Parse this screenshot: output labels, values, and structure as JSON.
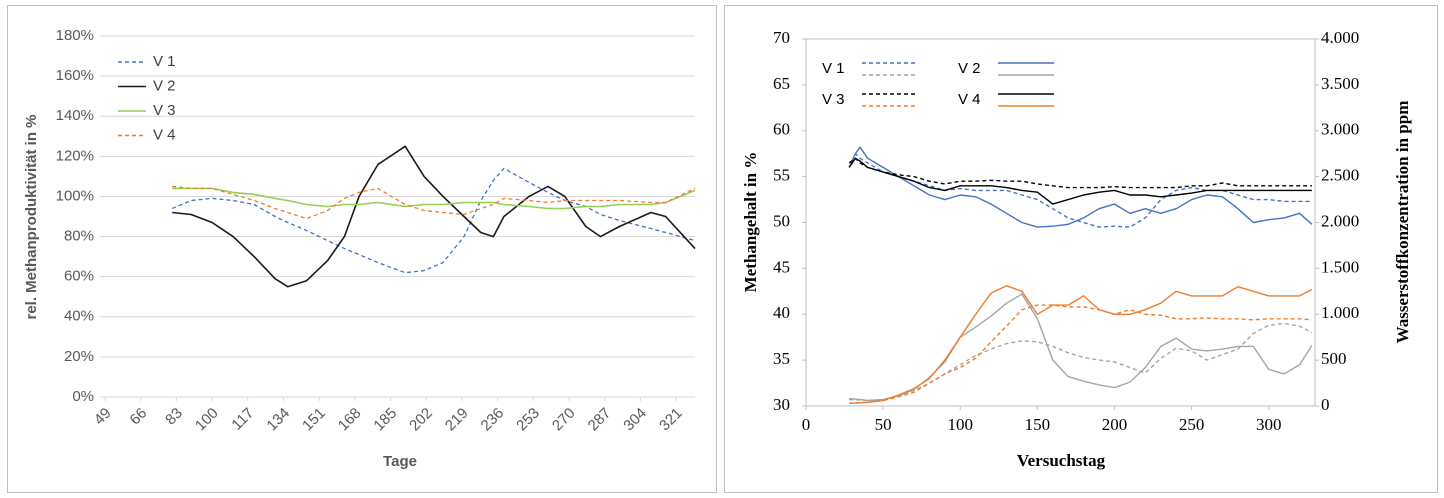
{
  "chart_data": [
    {
      "type": "line",
      "y_label": "rel. Methanproduktivität in %",
      "x_label": "Tage",
      "xlim": [
        49,
        330
      ],
      "xticks": [
        49,
        66,
        83,
        100,
        117,
        134,
        151,
        168,
        185,
        202,
        219,
        236,
        253,
        270,
        287,
        304,
        321
      ],
      "ylim": [
        0,
        180
      ],
      "yticks": [
        {
          "value": 0,
          "label": "0%"
        },
        {
          "value": 20,
          "label": "20%"
        },
        {
          "value": 40,
          "label": "40%"
        },
        {
          "value": 60,
          "label": "60%"
        },
        {
          "value": 80,
          "label": "80%"
        },
        {
          "value": 100,
          "label": "100%"
        },
        {
          "value": 120,
          "label": "120%"
        },
        {
          "value": 140,
          "label": "140%"
        },
        {
          "value": 160,
          "label": "160%"
        },
        {
          "value": 180,
          "label": "180%"
        }
      ],
      "grid": true,
      "legend": "top-left",
      "x": [
        81,
        90,
        100,
        110,
        120,
        130,
        136,
        145,
        155,
        163,
        170,
        179,
        192,
        201,
        210,
        220,
        228,
        234,
        239,
        251,
        260,
        268,
        278,
        285,
        294,
        309,
        316,
        330
      ],
      "series": [
        {
          "name": "V 1",
          "color": "#4472c4",
          "dash": true,
          "values": [
            94,
            98,
            99,
            98,
            96,
            90,
            87,
            83,
            78,
            74,
            71,
            67,
            62,
            63,
            67,
            80,
            98,
            108,
            114,
            107,
            102,
            98,
            95,
            91,
            88,
            84,
            82,
            78
          ]
        },
        {
          "name": "V 2",
          "color": "#1a1a1a",
          "dash": false,
          "values": [
            92,
            91,
            87,
            80,
            70,
            59,
            55,
            58,
            68,
            80,
            100,
            116,
            125,
            110,
            100,
            90,
            82,
            80,
            90,
            100,
            105,
            100,
            85,
            80,
            85,
            92,
            90,
            74
          ]
        },
        {
          "name": "V 3",
          "color": "#92d050",
          "dash": false,
          "values": [
            104,
            104,
            104,
            102,
            101,
            99,
            98,
            96,
            95,
            96,
            96,
            97,
            95,
            96,
            96,
            97,
            97,
            97,
            96,
            95,
            94,
            94,
            95,
            95,
            96,
            96,
            97,
            103
          ]
        },
        {
          "name": "V 4",
          "color": "#ed7d31",
          "dash": true,
          "values": [
            105,
            104,
            104,
            101,
            98,
            94,
            92,
            89,
            93,
            99,
            102,
            104,
            96,
            93,
            92,
            91,
            94,
            96,
            99,
            98,
            97,
            98,
            98,
            98,
            98,
            97,
            97,
            104
          ]
        }
      ]
    },
    {
      "type": "line",
      "y_label": "Methangehalt in %",
      "y2_label": "Wasserstoffkonzentration in ppm",
      "x_label": "Versuchstag",
      "xlim": [
        0,
        330
      ],
      "xticks": [
        0,
        50,
        100,
        150,
        200,
        250,
        300
      ],
      "ylim": [
        30,
        70
      ],
      "yticks": [
        30,
        35,
        40,
        45,
        50,
        55,
        60,
        65,
        70
      ],
      "y2lim": [
        0,
        4000
      ],
      "y2ticks": [
        0,
        500,
        {
          "value": 1000,
          "label": "1.000"
        },
        {
          "value": 1500,
          "label": "1.500"
        },
        {
          "value": 2000,
          "label": "2.000"
        },
        {
          "value": 2500,
          "label": "2.500"
        },
        {
          "value": 3000,
          "label": "3.000"
        },
        {
          "value": 3500,
          "label": "3.500"
        },
        {
          "value": 4000,
          "label": "4.000"
        }
      ],
      "legend": "top-left",
      "x": [
        28,
        32,
        35,
        40,
        50,
        60,
        70,
        80,
        90,
        100,
        110,
        120,
        130,
        140,
        150,
        160,
        170,
        180,
        190,
        200,
        210,
        220,
        230,
        240,
        250,
        260,
        270,
        280,
        290,
        300,
        310,
        320,
        328
      ],
      "series": [
        {
          "name": "V 1",
          "lines": [
            {
              "color": "#4472c4",
              "dash": true,
              "axis": "y",
              "values": [
                56,
                57.5,
                57,
                56.5,
                55.5,
                55,
                54.5,
                54,
                53.5,
                53.7,
                53.5,
                53.5,
                53.5,
                53,
                52.5,
                51.5,
                50.5,
                50,
                49.5,
                49.6,
                49.5,
                50.5,
                52.5,
                53.5,
                53.8,
                53.5,
                53.5,
                53,
                52.5,
                52.5,
                52.3,
                52.3,
                52.3
              ]
            },
            {
              "color": "#a5a5a5",
              "dash": true,
              "axis": "y2",
              "values": [
                70,
                68,
                65,
                60,
                70,
                110,
                170,
                250,
                350,
                450,
                550,
                620,
                680,
                710,
                700,
                650,
                580,
                530,
                500,
                480,
                420,
                360,
                520,
                630,
                600,
                500,
                560,
                620,
                790,
                880,
                900,
                870,
                800
              ]
            }
          ]
        },
        {
          "name": "V 2",
          "lines": [
            {
              "color": "#4472c4",
              "dash": false,
              "axis": "y",
              "values": [
                56,
                57.5,
                58.2,
                57,
                56,
                55,
                54,
                53,
                52.5,
                53,
                52.8,
                52,
                51,
                50,
                49.5,
                49.6,
                49.8,
                50.5,
                51.5,
                52,
                51,
                51.5,
                51,
                51.5,
                52.5,
                53,
                52.8,
                51.5,
                50,
                50.3,
                50.5,
                51,
                49.8
              ]
            },
            {
              "color": "#a5a5a5",
              "dash": false,
              "axis": "y2",
              "values": [
                80,
                75,
                70,
                60,
                70,
                110,
                180,
                310,
                480,
                750,
                860,
                980,
                1120,
                1220,
                950,
                500,
                320,
                270,
                230,
                200,
                260,
                420,
                650,
                740,
                620,
                600,
                620,
                650,
                650,
                400,
                350,
                450,
                660
              ]
            }
          ]
        },
        {
          "name": "V 3",
          "lines": [
            {
              "color": "#000000",
              "dash": true,
              "axis": "y",
              "values": [
                56.5,
                57,
                56.5,
                56,
                55.5,
                55.2,
                55,
                54.5,
                54.2,
                54.5,
                54.5,
                54.6,
                54.5,
                54.5,
                54.2,
                54,
                53.8,
                53.8,
                53.8,
                53.9,
                53.8,
                53.8,
                53.8,
                53.8,
                54,
                54,
                54.3,
                54,
                54,
                54,
                54,
                54,
                54
              ]
            },
            {
              "color": "#ed7d31",
              "dash": true,
              "axis": "y2",
              "values": [
                30,
                32,
                35,
                40,
                60,
                100,
                150,
                250,
                350,
                420,
                520,
                700,
                870,
                1050,
                1100,
                1100,
                1080,
                1080,
                1050,
                1000,
                1050,
                1000,
                990,
                950,
                950,
                960,
                950,
                950,
                940,
                950,
                950,
                950,
                940
              ]
            }
          ]
        },
        {
          "name": "V 4",
          "lines": [
            {
              "color": "#000000",
              "dash": false,
              "axis": "y",
              "values": [
                56,
                57,
                56.7,
                56,
                55.5,
                55,
                54.5,
                53.8,
                53.5,
                54,
                54,
                54,
                53.8,
                53.5,
                53.3,
                52,
                52.5,
                53,
                53.3,
                53.5,
                53,
                53,
                52.8,
                53,
                53.2,
                53.5,
                53.5,
                53.5,
                53.5,
                53.5,
                53.5,
                53.5,
                53.5
              ]
            },
            {
              "color": "#ed7d31",
              "dash": false,
              "axis": "y2",
              "values": [
                30,
                32,
                35,
                40,
                60,
                120,
                190,
                300,
                500,
                750,
                1000,
                1230,
                1310,
                1250,
                1000,
                1100,
                1100,
                1200,
                1050,
                1000,
                1000,
                1050,
                1120,
                1250,
                1200,
                1200,
                1200,
                1300,
                1250,
                1200,
                1200,
                1200,
                1270
              ]
            }
          ]
        }
      ]
    }
  ]
}
